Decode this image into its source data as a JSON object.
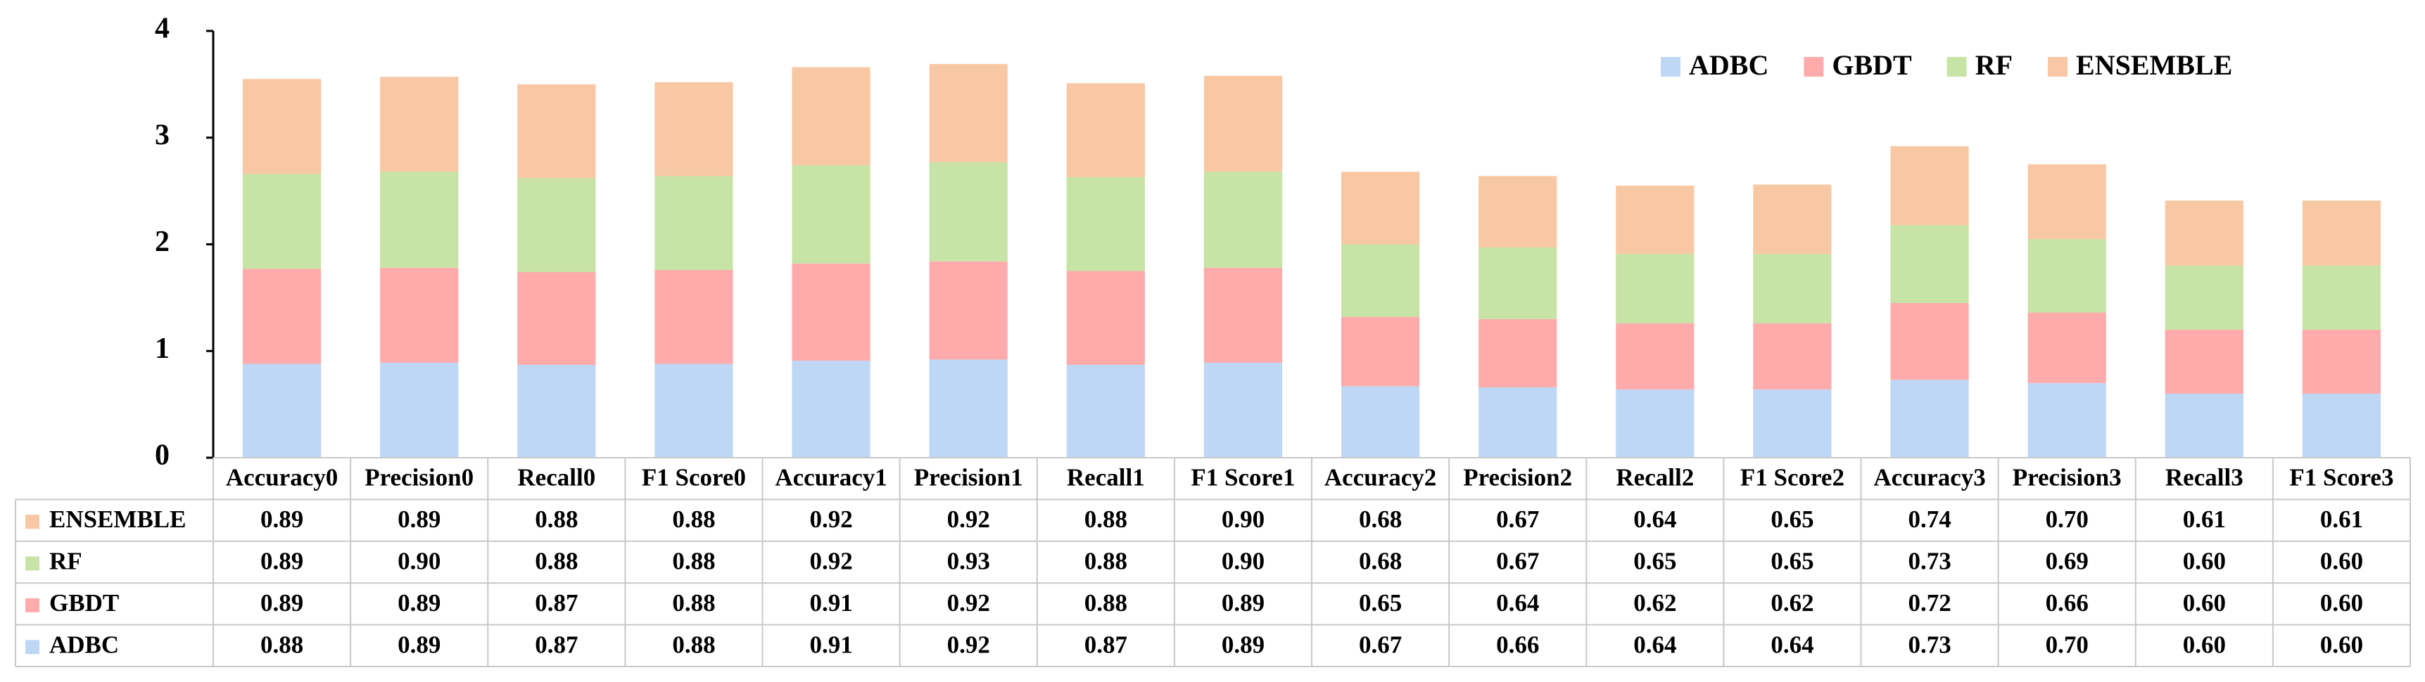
{
  "chart_data": {
    "type": "stacked_bar",
    "categories": [
      "Accuracy0",
      "Precision0",
      "Recall0",
      "F1 Score0",
      "Accuracy1",
      "Precision1",
      "Recall1",
      "F1 Score1",
      "Accuracy2",
      "Precision2",
      "Recall2",
      "F1 Score2",
      "Accuracy3",
      "Precision3",
      "Recall3",
      "F1 Score3"
    ],
    "series": [
      {
        "name": "ADBC",
        "color": "#bdd7f5",
        "values": [
          0.88,
          0.89,
          0.87,
          0.88,
          0.91,
          0.92,
          0.87,
          0.89,
          0.67,
          0.66,
          0.64,
          0.64,
          0.73,
          0.7,
          0.6,
          0.6
        ],
        "value_labels": [
          "0.88",
          "0.89",
          "0.87",
          "0.88",
          "0.91",
          "0.92",
          "0.87",
          "0.89",
          "0.67",
          "0.66",
          "0.64",
          "0.64",
          "0.73",
          "0.70",
          "0.60",
          "0.60"
        ]
      },
      {
        "name": "GBDT",
        "color": "#ffabab",
        "values": [
          0.89,
          0.89,
          0.87,
          0.88,
          0.91,
          0.92,
          0.88,
          0.89,
          0.65,
          0.64,
          0.62,
          0.62,
          0.72,
          0.66,
          0.6,
          0.6
        ],
        "value_labels": [
          "0.89",
          "0.89",
          "0.87",
          "0.88",
          "0.91",
          "0.92",
          "0.88",
          "0.89",
          "0.65",
          "0.64",
          "0.62",
          "0.62",
          "0.72",
          "0.66",
          "0.60",
          "0.60"
        ]
      },
      {
        "name": "RF",
        "color": "#c7e3a6",
        "values": [
          0.89,
          0.9,
          0.88,
          0.88,
          0.92,
          0.93,
          0.88,
          0.9,
          0.68,
          0.67,
          0.65,
          0.65,
          0.73,
          0.69,
          0.6,
          0.6
        ],
        "value_labels": [
          "0.89",
          "0.90",
          "0.88",
          "0.88",
          "0.92",
          "0.93",
          "0.88",
          "0.90",
          "0.68",
          "0.67",
          "0.65",
          "0.65",
          "0.73",
          "0.69",
          "0.60",
          "0.60"
        ]
      },
      {
        "name": "ENSEMBLE",
        "color": "#f8c8a4",
        "values": [
          0.89,
          0.89,
          0.88,
          0.88,
          0.92,
          0.92,
          0.88,
          0.9,
          0.68,
          0.67,
          0.64,
          0.65,
          0.74,
          0.7,
          0.61,
          0.61
        ],
        "value_labels": [
          "0.89",
          "0.89",
          "0.88",
          "0.88",
          "0.92",
          "0.92",
          "0.88",
          "0.90",
          "0.68",
          "0.67",
          "0.64",
          "0.65",
          "0.74",
          "0.70",
          "0.61",
          "0.61"
        ]
      }
    ],
    "ylim": [
      0,
      4
    ],
    "yticks": [
      0,
      1,
      2,
      3,
      4
    ],
    "grid": false,
    "legend": "top-right"
  }
}
